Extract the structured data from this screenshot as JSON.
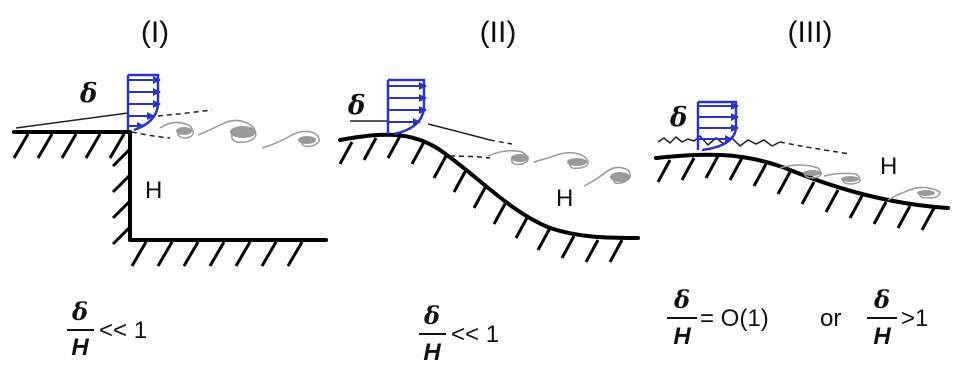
{
  "panels": [
    {
      "numeral": "(I)",
      "boundary_layer_symbol": "δ",
      "height_symbol": "H",
      "ratio": {
        "numerator": "δ",
        "denominator": "H",
        "relation": "<< 1"
      }
    },
    {
      "numeral": "(II)",
      "boundary_layer_symbol": "δ",
      "height_symbol": "H",
      "ratio": {
        "numerator": "δ",
        "denominator": "H",
        "relation": "<< 1"
      }
    },
    {
      "numeral": "(III)",
      "boundary_layer_symbol": "δ",
      "height_symbol": "H",
      "ratio": {
        "numerator": "δ",
        "denominator": "H",
        "relation": "= O(1)"
      },
      "connector": "or",
      "ratio_alt": {
        "numerator": "δ",
        "denominator": "H",
        "relation": ">1"
      }
    }
  ],
  "colors": {
    "velocity_profile": "#2a35c8",
    "wake_vortices": "#9a9a9a",
    "wall": "#000000"
  }
}
